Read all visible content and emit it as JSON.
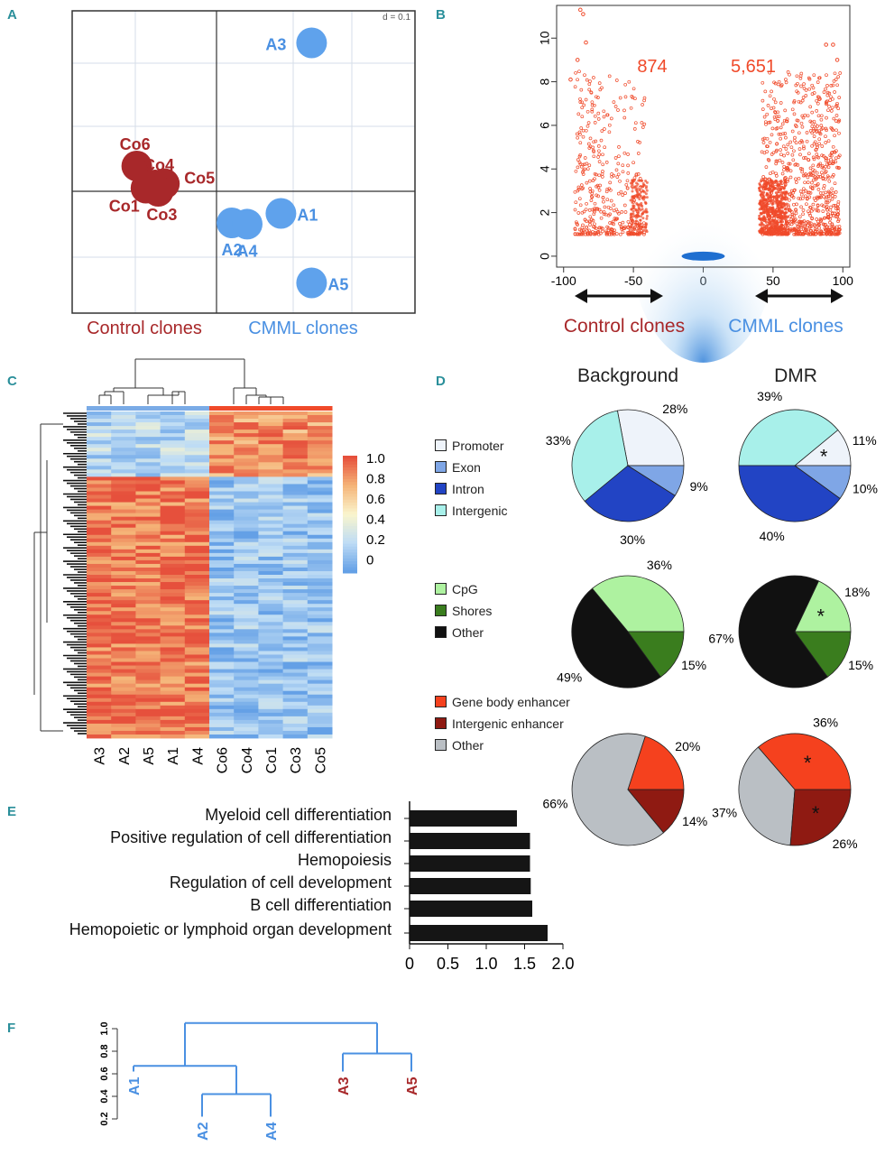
{
  "panels": {
    "a": "A",
    "b": "B",
    "c": "C",
    "d": "D",
    "e": "E",
    "f": "F"
  },
  "colors": {
    "control": "#a8282a",
    "cmml": "#4a90e2",
    "teal": "#2a8f9a",
    "volcano": "#f04a2a",
    "bar": "#151515"
  },
  "chart_data": [
    {
      "type": "scatter",
      "panel": "A",
      "scale_label": "d = 0.1",
      "points": [
        {
          "label": "A3",
          "x": 1.55,
          "y": 2.35,
          "group": "cmml"
        },
        {
          "label": "A1",
          "x": 1.05,
          "y": -0.35,
          "group": "cmml"
        },
        {
          "label": "A2",
          "x": 0.25,
          "y": -0.5,
          "group": "cmml"
        },
        {
          "label": "A4",
          "x": 0.5,
          "y": -0.52,
          "group": "cmml"
        },
        {
          "label": "A5",
          "x": 1.55,
          "y": -1.45,
          "group": "cmml"
        },
        {
          "label": "Co6",
          "x": -1.3,
          "y": 0.4,
          "group": "control"
        },
        {
          "label": "Co4",
          "x": -1.0,
          "y": 0.1,
          "group": "control"
        },
        {
          "label": "Co5",
          "x": -0.85,
          "y": 0.12,
          "group": "control"
        },
        {
          "label": "Co1",
          "x": -1.15,
          "y": 0.05,
          "group": "control"
        },
        {
          "label": "Co3",
          "x": -0.95,
          "y": 0.0,
          "group": "control"
        }
      ],
      "group_labels": {
        "control": "Control clones",
        "cmml": "CMML clones"
      }
    },
    {
      "type": "scatter",
      "panel": "B",
      "xlim": [
        -105,
        105
      ],
      "ylim": [
        -0.5,
        11.5
      ],
      "xticks": [
        -100,
        -50,
        0,
        50,
        100
      ],
      "yticks": [
        0,
        2,
        4,
        6,
        8,
        10
      ],
      "counts": {
        "control": "874",
        "cmml": "5,651"
      },
      "arrow_labels": {
        "control": "Control clones",
        "cmml": "CMML clones"
      }
    },
    {
      "type": "heatmap",
      "panel": "C",
      "columns": [
        "A3",
        "A2",
        "A5",
        "A1",
        "A4",
        "Co6",
        "Co4",
        "Co1",
        "Co3",
        "Co5"
      ],
      "column_groups": [
        "cmml",
        "cmml",
        "cmml",
        "cmml",
        "cmml",
        "control",
        "control",
        "control",
        "control",
        "control"
      ],
      "colorbar_ticks": [
        "1.0",
        "0.8",
        "0.6",
        "0.4",
        "0.2",
        "0"
      ],
      "clusters": [
        {
          "name": "cluster-1",
          "rows": 0.2,
          "cmml": 0.25,
          "control": 0.82
        },
        {
          "name": "cluster-2",
          "rows": 0.8,
          "cmml": 0.9,
          "control": 0.15
        }
      ]
    },
    {
      "type": "pie",
      "panel": "D",
      "column_titles": [
        "Background",
        "DMR"
      ],
      "legends": [
        [
          {
            "label": "Promoter",
            "color": "#eef3fa"
          },
          {
            "label": "Exon",
            "color": "#7fa6e6"
          },
          {
            "label": "Intron",
            "color": "#2244c4"
          },
          {
            "label": "Intergenic",
            "color": "#a8f0ea"
          }
        ],
        [
          {
            "label": "CpG",
            "color": "#aef2a0"
          },
          {
            "label": "Shores",
            "color": "#3a7d1e"
          },
          {
            "label": "Other",
            "color": "#111111"
          }
        ],
        [
          {
            "label": "Gene body enhancer",
            "color": "#f5411e"
          },
          {
            "label": "Intergenic enhancer",
            "color": "#8f1a12"
          },
          {
            "label": "Other",
            "color": "#babfc4"
          }
        ]
      ],
      "pies": [
        {
          "name": "background-features",
          "slices": [
            {
              "label": "28%",
              "value": 28,
              "color": "#eef3fa",
              "star": false
            },
            {
              "label": "33%",
              "value": 33,
              "color": "#a8f0ea",
              "star": false
            },
            {
              "label": "30%",
              "value": 30,
              "color": "#2244c4",
              "star": false
            },
            {
              "label": "9%",
              "value": 9,
              "color": "#7fa6e6",
              "star": false
            }
          ]
        },
        {
          "name": "dmr-features",
          "slices": [
            {
              "label": "11%",
              "value": 11,
              "color": "#eef3fa",
              "star": true
            },
            {
              "label": "39%",
              "value": 39,
              "color": "#a8f0ea",
              "star": false
            },
            {
              "label": "40%",
              "value": 40,
              "color": "#2244c4",
              "star": false
            },
            {
              "label": "10%",
              "value": 10,
              "color": "#7fa6e6",
              "star": false
            }
          ]
        },
        {
          "name": "background-cpg",
          "slices": [
            {
              "label": "36%",
              "value": 36,
              "color": "#aef2a0",
              "star": false
            },
            {
              "label": "49%",
              "value": 49,
              "color": "#111111",
              "star": false
            },
            {
              "label": "15%",
              "value": 15,
              "color": "#3a7d1e",
              "star": false
            }
          ]
        },
        {
          "name": "dmr-cpg",
          "slices": [
            {
              "label": "18%",
              "value": 18,
              "color": "#aef2a0",
              "star": true
            },
            {
              "label": "67%",
              "value": 67,
              "color": "#111111",
              "star": false
            },
            {
              "label": "15%",
              "value": 15,
              "color": "#3a7d1e",
              "star": false
            }
          ]
        },
        {
          "name": "background-enhancer",
          "slices": [
            {
              "label": "20%",
              "value": 20,
              "color": "#f5411e",
              "star": false
            },
            {
              "label": "66%",
              "value": 66,
              "color": "#babfc4",
              "star": false
            },
            {
              "label": "14%",
              "value": 14,
              "color": "#8f1a12",
              "star": false
            }
          ]
        },
        {
          "name": "dmr-enhancer",
          "slices": [
            {
              "label": "36%",
              "value": 36,
              "color": "#f5411e",
              "star": true
            },
            {
              "label": "37%",
              "value": 37,
              "color": "#babfc4",
              "star": false
            },
            {
              "label": "26%",
              "value": 26,
              "color": "#8f1a12",
              "star": true
            }
          ]
        }
      ]
    },
    {
      "type": "bar",
      "panel": "E",
      "orientation": "horizontal",
      "categories": [
        "Myeloid cell differentiation",
        "Positive regulation of cell differentiation",
        "Hemopoiesis",
        "Regulation of cell development",
        "B cell differentiation",
        "Hemopoietic or lymphoid organ development"
      ],
      "values": [
        1.4,
        1.57,
        1.57,
        1.58,
        1.6,
        1.8
      ],
      "xlim": [
        0,
        2.0
      ],
      "xticks": [
        "0",
        "0.5",
        "1.0",
        "1.5",
        "2.0"
      ]
    },
    {
      "type": "dendrogram",
      "panel": "F",
      "yticks": [
        "0.2",
        "0.4",
        "0.6",
        "0.8",
        "1.0"
      ],
      "leaves": [
        {
          "label": "A1",
          "height": 0.62,
          "group": "cmml"
        },
        {
          "label": "A2",
          "height": 0.22,
          "group": "cmml"
        },
        {
          "label": "A4",
          "height": 0.22,
          "group": "cmml"
        },
        {
          "label": "A3",
          "height": 0.62,
          "group": "control"
        },
        {
          "label": "A5",
          "height": 0.62,
          "group": "control"
        }
      ],
      "merges": {
        "a2_a4": 0.42,
        "a1_group": 0.67,
        "a3_a5": 0.78,
        "root": 1.05
      }
    }
  ]
}
